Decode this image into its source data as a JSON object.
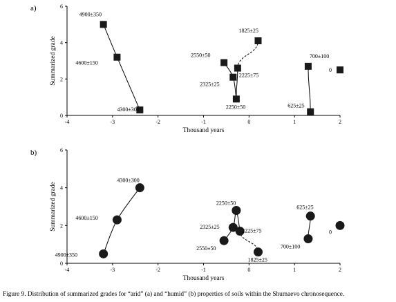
{
  "figure": {
    "caption": "Figure 9. Distribution of summarized grades for “arid” (a) and “humid” (b) properties of soils within the Shumaevo chronosequence."
  },
  "chart_data": [
    {
      "panel_label": "a)",
      "type": "scatter",
      "marker": "square",
      "xlabel": "Thousand years",
      "ylabel": "Summarized grade",
      "xlim": [
        -4,
        2
      ],
      "ylim": [
        0,
        6
      ],
      "xticks": [
        -4,
        -3,
        -2,
        -1,
        0,
        1,
        2
      ],
      "yticks": [
        0,
        2,
        4,
        6
      ],
      "grid": false,
      "points": [
        {
          "label": "4900±350",
          "x": -3.2,
          "y": 5.0
        },
        {
          "label": "4600±150",
          "x": -2.9,
          "y": 3.2
        },
        {
          "label": "4300±300",
          "x": -2.4,
          "y": 0.3
        },
        {
          "label": "2550±50",
          "x": -0.55,
          "y": 2.9
        },
        {
          "label": "2325±25",
          "x": -0.35,
          "y": 2.1
        },
        {
          "label": "2250±50",
          "x": -0.28,
          "y": 0.9
        },
        {
          "label": "2225±75",
          "x": -0.25,
          "y": 2.6
        },
        {
          "label": "1825±25",
          "x": 0.2,
          "y": 4.1
        },
        {
          "label": "700±100",
          "x": 1.3,
          "y": 2.7
        },
        {
          "label": "625±25",
          "x": 1.35,
          "y": 0.2
        },
        {
          "label": "0",
          "x": 2.0,
          "y": 2.5
        }
      ],
      "connections": [
        {
          "style": "solid",
          "points": [
            "4900±350",
            "4600±150",
            "4300±300"
          ]
        },
        {
          "style": "solid",
          "points": [
            "2550±50",
            "2325±25",
            "2250±50"
          ]
        },
        {
          "style": "solid",
          "points": [
            "2250±50",
            "2225±75"
          ]
        },
        {
          "style": "dashed",
          "points": [
            "2225±75",
            "1825±25"
          ]
        },
        {
          "style": "solid",
          "points": [
            "700±100",
            "625±25"
          ]
        }
      ]
    },
    {
      "panel_label": "b)",
      "type": "scatter",
      "marker": "circle",
      "xlabel": "Thousand years",
      "ylabel": "Summarized grade",
      "xlim": [
        -4,
        2
      ],
      "ylim": [
        0,
        6
      ],
      "xticks": [
        -4,
        -3,
        -2,
        -1,
        0,
        1,
        2
      ],
      "yticks": [
        0,
        2,
        4,
        6
      ],
      "grid": false,
      "points": [
        {
          "label": "4900±350",
          "x": -3.2,
          "y": 0.5
        },
        {
          "label": "4600±150",
          "x": -2.9,
          "y": 2.3
        },
        {
          "label": "4300±300",
          "x": -2.4,
          "y": 4.0
        },
        {
          "label": "2550±50",
          "x": -0.55,
          "y": 1.2
        },
        {
          "label": "2325±25",
          "x": -0.35,
          "y": 1.9
        },
        {
          "label": "2250±50",
          "x": -0.28,
          "y": 2.8
        },
        {
          "label": "2225±75",
          "x": -0.2,
          "y": 1.7
        },
        {
          "label": "1825±25",
          "x": 0.2,
          "y": 0.6
        },
        {
          "label": "700±100",
          "x": 1.3,
          "y": 1.3
        },
        {
          "label": "625±25",
          "x": 1.35,
          "y": 2.5
        },
        {
          "label": "0",
          "x": 2.0,
          "y": 2.0
        }
      ],
      "connections": [
        {
          "style": "solid",
          "points": [
            "4900±350",
            "4600±150",
            "4300±300"
          ]
        },
        {
          "style": "solid",
          "points": [
            "2550±50",
            "2325±25",
            "2250±50",
            "2225±75"
          ]
        },
        {
          "style": "dashed",
          "points": [
            "2225±75",
            "1825±25"
          ]
        },
        {
          "style": "solid",
          "points": [
            "700±100",
            "625±25"
          ]
        }
      ]
    }
  ]
}
